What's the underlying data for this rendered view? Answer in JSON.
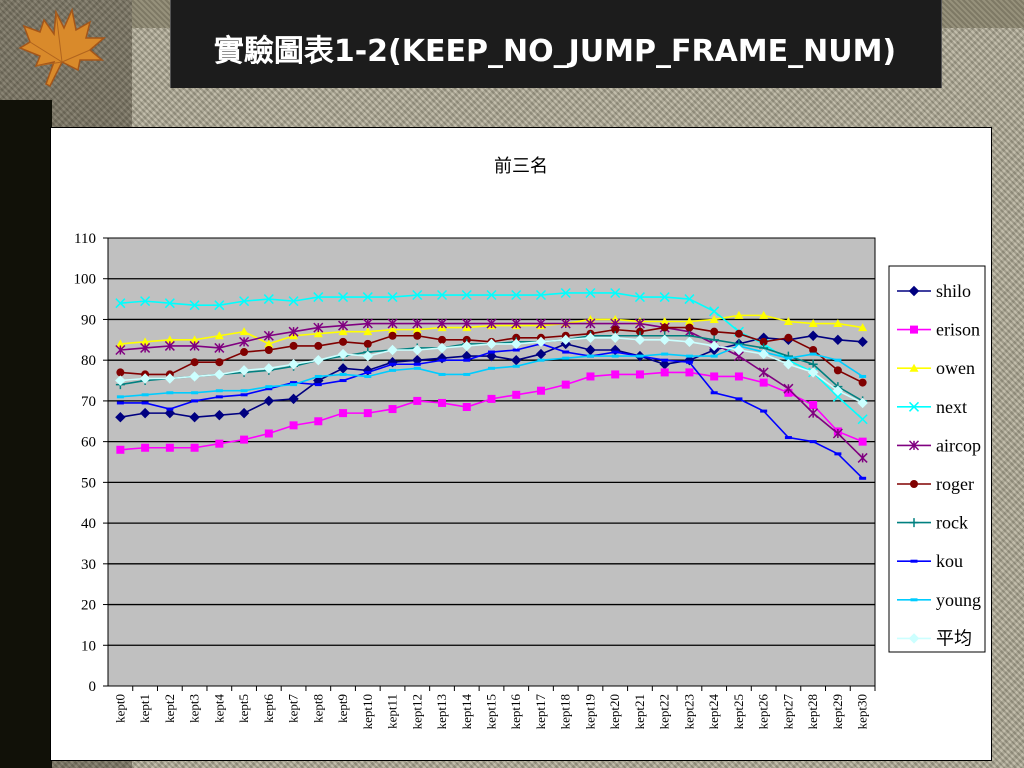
{
  "slide": {
    "title": "實驗圖表1-2(KEEP_NO_JUMP_FRAME_NUM)"
  },
  "colors": {
    "shilo": "#000080",
    "erison": "#ff00ff",
    "owen": "#ffff00",
    "next": "#00ffff",
    "aircop": "#800080",
    "roger": "#800000",
    "rock": "#008080",
    "kou": "#0000ff",
    "young": "#00ccff",
    "avg": "#ccffff"
  },
  "chart_data": {
    "type": "line",
    "title": "前三名",
    "xlabel": "",
    "ylabel": "",
    "ylim": [
      0,
      110
    ],
    "yticks": [
      0,
      10,
      20,
      30,
      40,
      50,
      60,
      70,
      80,
      90,
      100,
      110
    ],
    "grid": true,
    "legend_position": "right",
    "categories": [
      "kept0",
      "kept1",
      "kept2",
      "kept3",
      "kept4",
      "kept5",
      "kept6",
      "kept7",
      "kept8",
      "kept9",
      "kept10",
      "kept11",
      "kept12",
      "kept13",
      "kept14",
      "kept15",
      "kept16",
      "kept17",
      "kept18",
      "kept19",
      "kept20",
      "kept21",
      "kept22",
      "kept23",
      "kept24",
      "kept25",
      "kept26",
      "kept27",
      "kept28",
      "kept29",
      "kept30"
    ],
    "series": [
      {
        "name": "shilo",
        "marker": "diamond",
        "values": [
          66,
          67,
          67,
          66,
          66.5,
          67,
          70,
          70.5,
          75,
          78,
          77.5,
          79.5,
          80,
          80.5,
          81,
          81,
          80,
          81.5,
          84,
          82.5,
          82.5,
          81,
          79,
          80,
          82.5,
          84,
          85.5,
          85,
          86,
          85,
          84.5
        ]
      },
      {
        "name": "erison",
        "marker": "square",
        "values": [
          58,
          58.5,
          58.5,
          58.5,
          59.5,
          60.5,
          62,
          64,
          65,
          67,
          67,
          68,
          70,
          69.5,
          68.5,
          70.5,
          71.5,
          72.5,
          74,
          76,
          76.5,
          76.5,
          77,
          77,
          76,
          76,
          74.5,
          72,
          69,
          62.5,
          60
        ]
      },
      {
        "name": "owen",
        "marker": "triangle",
        "values": [
          84,
          84.5,
          85,
          85,
          86,
          87,
          84,
          86,
          86.5,
          87,
          87,
          87.5,
          87.5,
          88,
          88,
          88.5,
          88.5,
          88.5,
          89,
          90,
          90,
          89.5,
          89.5,
          89.5,
          90,
          91,
          91,
          89.5,
          89,
          89,
          88
        ]
      },
      {
        "name": "next",
        "marker": "x",
        "values": [
          94,
          94.5,
          94,
          93.5,
          93.5,
          94.5,
          95,
          94.5,
          95.5,
          95.5,
          95.5,
          95.5,
          96,
          96,
          96,
          96,
          96,
          96,
          96.5,
          96.5,
          96.5,
          95.5,
          95.5,
          95,
          92,
          87,
          84,
          80,
          77,
          71,
          65.5
        ]
      },
      {
        "name": "aircop",
        "marker": "star",
        "values": [
          82.5,
          83,
          83.5,
          83.5,
          83,
          84.5,
          86,
          87,
          88,
          88.5,
          89,
          89,
          89,
          89,
          89,
          89,
          89,
          89,
          89,
          89,
          89,
          89,
          88,
          87,
          84,
          81,
          77,
          73,
          67,
          62,
          56
        ]
      },
      {
        "name": "roger",
        "marker": "circle",
        "values": [
          77,
          76.5,
          76.5,
          79.5,
          79.5,
          82,
          82.5,
          83.5,
          83.5,
          84.5,
          84,
          86,
          86,
          85,
          85,
          84.5,
          85.5,
          85.5,
          86,
          86.5,
          87.5,
          87,
          88,
          88,
          87,
          86.5,
          84.5,
          85.5,
          82.5,
          77.5,
          74.5
        ]
      },
      {
        "name": "rock",
        "marker": "plus",
        "values": [
          74,
          75,
          75.5,
          76,
          76.5,
          77,
          77.5,
          78.5,
          80,
          81,
          82,
          82.5,
          83,
          83,
          84,
          84,
          84.5,
          84.5,
          85,
          86,
          86,
          86,
          86,
          86,
          85,
          84,
          83,
          81,
          79,
          73.5,
          70
        ]
      },
      {
        "name": "kou",
        "marker": "dash",
        "values": [
          69.5,
          69.5,
          68,
          70,
          71,
          71.5,
          73,
          74.5,
          74,
          75,
          77,
          79,
          79,
          80,
          80,
          82,
          82.5,
          84,
          82,
          81,
          82,
          81,
          80,
          79.5,
          72,
          70.5,
          67.5,
          61,
          60,
          57,
          51
        ]
      },
      {
        "name": "young",
        "marker": "dash",
        "values": [
          71,
          71.5,
          72,
          72,
          72.5,
          72.5,
          73.5,
          74,
          76,
          76.5,
          76,
          77.5,
          78,
          76.5,
          76.5,
          78,
          78.5,
          80,
          80.5,
          81,
          81,
          81,
          81.5,
          81,
          81,
          83.5,
          82,
          80.5,
          81.5,
          80,
          76
        ]
      },
      {
        "name": "平均",
        "marker": "diamond",
        "values": [
          75,
          75.5,
          75.5,
          76,
          76.5,
          77.5,
          78,
          79,
          80,
          81.5,
          81,
          82.5,
          82.5,
          83,
          83.5,
          84,
          84,
          84.5,
          85,
          85.5,
          85.5,
          85,
          85,
          84.5,
          83.5,
          82.5,
          81.5,
          79,
          77,
          72.5,
          69.5
        ]
      }
    ]
  }
}
